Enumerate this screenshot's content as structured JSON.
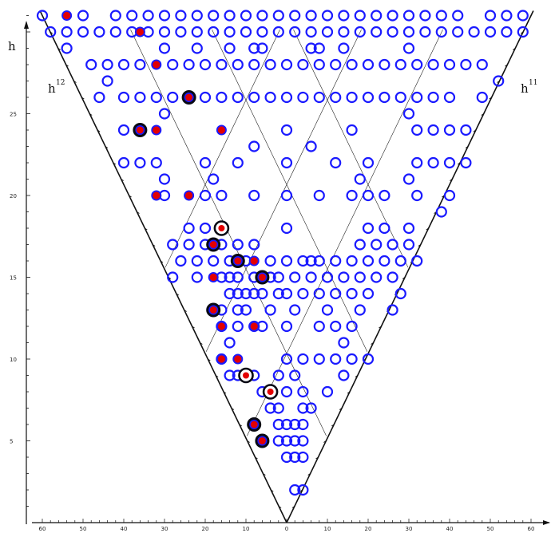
{
  "chart_data": {
    "type": "scatter",
    "title": "",
    "xlim": [
      -60,
      60
    ],
    "ylim": [
      0,
      30
    ],
    "x_ticks": [
      -60,
      -50,
      -40,
      -30,
      -20,
      -10,
      0,
      10,
      20,
      30,
      40,
      50,
      60
    ],
    "x_tick_labels": [
      "60",
      "50",
      "40",
      "30",
      "20",
      "10",
      "0",
      "10",
      "20",
      "30",
      "40",
      "50",
      "60"
    ],
    "y_ticks": [
      5,
      10,
      15,
      20,
      25
    ],
    "y_tick_labels": [
      "5",
      "10",
      "15",
      "20",
      "25"
    ],
    "axis_labels": {
      "vertical": "h",
      "left_edge": "h",
      "left_edge_sup": "12",
      "right_edge": "h",
      "right_edge_sup": "11"
    },
    "colors": {
      "open": "#1a1aff",
      "red": "#e30000",
      "ring": "#0a0a14",
      "line": "#111111"
    },
    "series": [
      {
        "marker": "open-circle",
        "points": [
          [
            2,
            2
          ],
          [
            4,
            2
          ],
          [
            0,
            4
          ],
          [
            2,
            4
          ],
          [
            4,
            4
          ],
          [
            -2,
            5
          ],
          [
            0,
            5
          ],
          [
            2,
            5
          ],
          [
            4,
            5
          ],
          [
            -2,
            6
          ],
          [
            0,
            6
          ],
          [
            2,
            6
          ],
          [
            4,
            6
          ],
          [
            -4,
            7
          ],
          [
            -2,
            7
          ],
          [
            4,
            7
          ],
          [
            6,
            7
          ],
          [
            -6,
            8
          ],
          [
            -4,
            8
          ],
          [
            0,
            8
          ],
          [
            4,
            8
          ],
          [
            10,
            8
          ],
          [
            -14,
            9
          ],
          [
            -12,
            9
          ],
          [
            -8,
            9
          ],
          [
            -2,
            9
          ],
          [
            2,
            9
          ],
          [
            14,
            9
          ],
          [
            -16,
            10
          ],
          [
            0,
            10
          ],
          [
            4,
            10
          ],
          [
            8,
            10
          ],
          [
            12,
            10
          ],
          [
            16,
            10
          ],
          [
            20,
            10
          ],
          [
            -14,
            11
          ],
          [
            14,
            11
          ],
          [
            -16,
            12
          ],
          [
            -12,
            12
          ],
          [
            -8,
            12
          ],
          [
            -6,
            12
          ],
          [
            0,
            12
          ],
          [
            8,
            12
          ],
          [
            12,
            12
          ],
          [
            16,
            12
          ],
          [
            -16,
            13
          ],
          [
            -12,
            13
          ],
          [
            -10,
            13
          ],
          [
            -4,
            13
          ],
          [
            2,
            13
          ],
          [
            10,
            13
          ],
          [
            18,
            13
          ],
          [
            26,
            13
          ],
          [
            -14,
            14
          ],
          [
            -12,
            14
          ],
          [
            -10,
            14
          ],
          [
            -8,
            14
          ],
          [
            -6,
            14
          ],
          [
            -2,
            14
          ],
          [
            0,
            14
          ],
          [
            4,
            14
          ],
          [
            8,
            14
          ],
          [
            12,
            14
          ],
          [
            16,
            14
          ],
          [
            20,
            14
          ],
          [
            28,
            14
          ],
          [
            -28,
            15
          ],
          [
            -22,
            15
          ],
          [
            -16,
            15
          ],
          [
            -14,
            15
          ],
          [
            -12,
            15
          ],
          [
            -8,
            15
          ],
          [
            -4,
            15
          ],
          [
            -2,
            15
          ],
          [
            2,
            15
          ],
          [
            6,
            15
          ],
          [
            10,
            15
          ],
          [
            14,
            15
          ],
          [
            18,
            15
          ],
          [
            22,
            15
          ],
          [
            26,
            15
          ],
          [
            -26,
            16
          ],
          [
            -22,
            16
          ],
          [
            -18,
            16
          ],
          [
            -14,
            16
          ],
          [
            -10,
            16
          ],
          [
            -4,
            16
          ],
          [
            0,
            16
          ],
          [
            4,
            16
          ],
          [
            6,
            16
          ],
          [
            8,
            16
          ],
          [
            12,
            16
          ],
          [
            16,
            16
          ],
          [
            20,
            16
          ],
          [
            24,
            16
          ],
          [
            28,
            16
          ],
          [
            32,
            16
          ],
          [
            -28,
            17
          ],
          [
            -24,
            17
          ],
          [
            -20,
            17
          ],
          [
            -16,
            17
          ],
          [
            -12,
            17
          ],
          [
            -8,
            17
          ],
          [
            18,
            17
          ],
          [
            22,
            17
          ],
          [
            26,
            17
          ],
          [
            30,
            17
          ],
          [
            -24,
            18
          ],
          [
            -20,
            18
          ],
          [
            0,
            18
          ],
          [
            20,
            18
          ],
          [
            24,
            18
          ],
          [
            30,
            18
          ],
          [
            38,
            19
          ],
          [
            -30,
            20
          ],
          [
            -20,
            20
          ],
          [
            -16,
            20
          ],
          [
            -8,
            20
          ],
          [
            0,
            20
          ],
          [
            8,
            20
          ],
          [
            16,
            20
          ],
          [
            20,
            20
          ],
          [
            24,
            20
          ],
          [
            32,
            20
          ],
          [
            40,
            20
          ],
          [
            -30,
            21
          ],
          [
            -18,
            21
          ],
          [
            18,
            21
          ],
          [
            30,
            21
          ],
          [
            -40,
            22
          ],
          [
            -36,
            22
          ],
          [
            -32,
            22
          ],
          [
            -20,
            22
          ],
          [
            -12,
            22
          ],
          [
            0,
            22
          ],
          [
            12,
            22
          ],
          [
            20,
            22
          ],
          [
            32,
            22
          ],
          [
            36,
            22
          ],
          [
            40,
            22
          ],
          [
            44,
            22
          ],
          [
            -8,
            23
          ],
          [
            6,
            23
          ],
          [
            -40,
            24
          ],
          [
            0,
            24
          ],
          [
            16,
            24
          ],
          [
            32,
            24
          ],
          [
            36,
            24
          ],
          [
            40,
            24
          ],
          [
            44,
            24
          ],
          [
            -30,
            25
          ],
          [
            30,
            25
          ],
          [
            -46,
            26
          ],
          [
            -40,
            26
          ],
          [
            -36,
            26
          ],
          [
            -32,
            26
          ],
          [
            -28,
            26
          ],
          [
            -20,
            26
          ],
          [
            -16,
            26
          ],
          [
            -12,
            26
          ],
          [
            -8,
            26
          ],
          [
            -4,
            26
          ],
          [
            0,
            26
          ],
          [
            4,
            26
          ],
          [
            8,
            26
          ],
          [
            12,
            26
          ],
          [
            16,
            26
          ],
          [
            20,
            26
          ],
          [
            24,
            26
          ],
          [
            28,
            26
          ],
          [
            32,
            26
          ],
          [
            36,
            26
          ],
          [
            40,
            26
          ],
          [
            48,
            26
          ],
          [
            -44,
            27
          ],
          [
            52,
            27
          ],
          [
            -48,
            28
          ],
          [
            -44,
            28
          ],
          [
            -40,
            28
          ],
          [
            -36,
            28
          ],
          [
            -28,
            28
          ],
          [
            -24,
            28
          ],
          [
            -20,
            28
          ],
          [
            -16,
            28
          ],
          [
            -12,
            28
          ],
          [
            -8,
            28
          ],
          [
            -4,
            28
          ],
          [
            0,
            28
          ],
          [
            4,
            28
          ],
          [
            8,
            28
          ],
          [
            12,
            28
          ],
          [
            16,
            28
          ],
          [
            20,
            28
          ],
          [
            24,
            28
          ],
          [
            28,
            28
          ],
          [
            32,
            28
          ],
          [
            36,
            28
          ],
          [
            40,
            28
          ],
          [
            44,
            28
          ],
          [
            48,
            28
          ],
          [
            -54,
            29
          ],
          [
            -30,
            29
          ],
          [
            -22,
            29
          ],
          [
            -14,
            29
          ],
          [
            -8,
            29
          ],
          [
            -6,
            29
          ],
          [
            6,
            29
          ],
          [
            8,
            29
          ],
          [
            14,
            29
          ],
          [
            30,
            29
          ],
          [
            -58,
            30
          ],
          [
            -54,
            30
          ],
          [
            -50,
            30
          ],
          [
            -46,
            30
          ],
          [
            -42,
            30
          ],
          [
            -38,
            30
          ],
          [
            -34,
            30
          ],
          [
            -30,
            30
          ],
          [
            -26,
            30
          ],
          [
            -22,
            30
          ],
          [
            -18,
            30
          ],
          [
            -14,
            30
          ],
          [
            -10,
            30
          ],
          [
            -6,
            30
          ],
          [
            -2,
            30
          ],
          [
            2,
            30
          ],
          [
            6,
            30
          ],
          [
            10,
            30
          ],
          [
            14,
            30
          ],
          [
            18,
            30
          ],
          [
            22,
            30
          ],
          [
            26,
            30
          ],
          [
            30,
            30
          ],
          [
            34,
            30
          ],
          [
            38,
            30
          ],
          [
            42,
            30
          ],
          [
            46,
            30
          ],
          [
            50,
            30
          ],
          [
            54,
            30
          ],
          [
            58,
            30
          ],
          [
            -60,
            31
          ],
          [
            -50,
            31
          ],
          [
            -42,
            31
          ],
          [
            -38,
            31
          ],
          [
            -34,
            31
          ],
          [
            -30,
            31
          ],
          [
            -26,
            31
          ],
          [
            -22,
            31
          ],
          [
            -18,
            31
          ],
          [
            -14,
            31
          ],
          [
            -10,
            31
          ],
          [
            -6,
            31
          ],
          [
            -2,
            31
          ],
          [
            2,
            31
          ],
          [
            6,
            31
          ],
          [
            10,
            31
          ],
          [
            14,
            31
          ],
          [
            18,
            31
          ],
          [
            22,
            31
          ],
          [
            26,
            31
          ],
          [
            30,
            31
          ],
          [
            34,
            31
          ],
          [
            38,
            31
          ],
          [
            42,
            31
          ],
          [
            50,
            31
          ],
          [
            54,
            31
          ],
          [
            58,
            31
          ]
        ]
      },
      {
        "marker": "red-dot",
        "points": [
          [
            -54,
            31
          ],
          [
            -36,
            30
          ],
          [
            -32,
            28
          ],
          [
            -32,
            24
          ],
          [
            -16,
            24
          ],
          [
            -32,
            20
          ],
          [
            -24,
            20
          ],
          [
            -8,
            16
          ],
          [
            -18,
            15
          ],
          [
            -16,
            12
          ],
          [
            -8,
            12
          ],
          [
            -16,
            10
          ],
          [
            -12,
            10
          ]
        ]
      },
      {
        "marker": "red-dot-black-disk",
        "points": [
          [
            -24,
            26
          ],
          [
            -36,
            24
          ],
          [
            -18,
            17
          ],
          [
            -12,
            16
          ],
          [
            -6,
            15
          ],
          [
            -18,
            13
          ],
          [
            -8,
            6
          ],
          [
            -6,
            5
          ]
        ]
      },
      {
        "marker": "red-dot-black-ring",
        "points": [
          [
            -16,
            18
          ],
          [
            -10,
            9
          ],
          [
            -4,
            8
          ]
        ]
      }
    ]
  }
}
